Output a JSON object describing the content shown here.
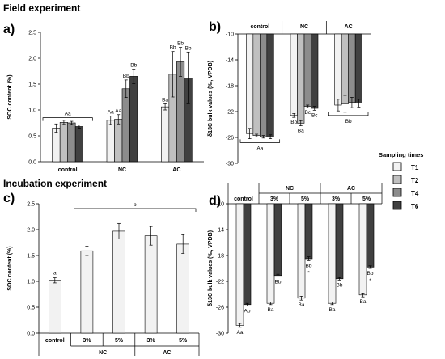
{
  "titles": {
    "field": "Field experiment",
    "incubation": "Incubation experiment"
  },
  "legend": {
    "title": "Sampling times",
    "items": [
      {
        "label": "T1",
        "color": "#f2f2f2"
      },
      {
        "label": "T2",
        "color": "#c0c0c0"
      },
      {
        "label": "T4",
        "color": "#8c8c8c"
      },
      {
        "label": "T6",
        "color": "#404040"
      }
    ]
  },
  "chart_data": [
    {
      "panel": "a)",
      "type": "bar",
      "ylabel": "SOC content (%)",
      "ylim": [
        0,
        2.5
      ],
      "yticks": [
        "0.0",
        "0.5",
        "1.0",
        "1.5",
        "2.0",
        "2.5"
      ],
      "categories": [
        "control",
        "NC",
        "AC"
      ],
      "series": [
        {
          "name": "T1",
          "values": [
            0.65,
            0.8,
            1.06
          ],
          "errors": [
            0.08,
            0.08,
            0.06
          ]
        },
        {
          "name": "T2",
          "values": [
            0.76,
            0.82,
            1.69
          ],
          "errors": [
            0.04,
            0.09,
            0.44
          ]
        },
        {
          "name": "T4",
          "values": [
            0.75,
            1.41,
            1.93
          ],
          "errors": [
            0.03,
            0.17,
            0.28
          ]
        },
        {
          "name": "T6",
          "values": [
            0.68,
            1.65,
            1.62
          ],
          "errors": [
            0.03,
            0.14,
            0.5
          ]
        }
      ],
      "labels": [
        [
          "",
          "",
          "",
          ""
        ],
        [
          "Aa",
          "Aa",
          "Bb",
          "Bb"
        ],
        [
          "Ba",
          "Bb",
          "Bb",
          "Bb"
        ]
      ],
      "bracket_label": "Aa"
    },
    {
      "panel": "b)",
      "type": "bar",
      "ylabel": "δ13C bulk values (‰, VPDB)",
      "ylim": [
        -30,
        -10
      ],
      "yticks": [
        "-10",
        "-14",
        "-18",
        "-22",
        "-26",
        "-30"
      ],
      "categories": [
        "control",
        "NC",
        "AC"
      ],
      "series": [
        {
          "name": "T1",
          "values": [
            -25.4,
            -22.6,
            -21.0
          ],
          "errors": [
            0.8,
            0.3,
            0.9
          ]
        },
        {
          "name": "T2",
          "values": [
            -25.7,
            -23.8,
            -20.8
          ],
          "errors": [
            0.2,
            0.4,
            1.3
          ]
        },
        {
          "name": "T4",
          "values": [
            -25.9,
            -21.2,
            -20.6
          ],
          "errors": [
            0.2,
            0.2,
            0.8
          ]
        },
        {
          "name": "T6",
          "values": [
            -25.9,
            -21.5,
            -20.7
          ],
          "errors": [
            0.3,
            0.3,
            0.6
          ]
        }
      ],
      "labels": [
        [
          "",
          "",
          "",
          ""
        ],
        [
          "Bb",
          "Ba",
          "Bc",
          "Bc"
        ],
        [
          "",
          "",
          "",
          ""
        ]
      ],
      "bracket_labels": [
        "Aa",
        "Bb"
      ]
    },
    {
      "panel": "c)",
      "type": "bar",
      "ylabel": "SOC content (%)",
      "ylim": [
        0,
        2.5
      ],
      "yticks": [
        "0.0",
        "0.5",
        "1.0",
        "1.5",
        "2.0",
        "2.5"
      ],
      "categories": [
        "control",
        "3%",
        "5%",
        "3%",
        "5%"
      ],
      "groups": [
        "NC",
        "AC"
      ],
      "values": [
        1.02,
        1.59,
        1.97,
        1.88,
        1.72
      ],
      "errors": [
        0.05,
        0.09,
        0.15,
        0.18,
        0.18
      ],
      "labels": [
        "a"
      ],
      "bracket_label": "b"
    },
    {
      "panel": "d)",
      "type": "bar",
      "ylabel": "δ13C bulk values (‰, VPDB)",
      "ylim": [
        -30,
        -10
      ],
      "yticks": [
        "-10",
        "-14",
        "-18",
        "-22",
        "-26",
        "-30"
      ],
      "categories": [
        "control",
        "3%",
        "5%",
        "3%",
        "5%"
      ],
      "groups": [
        "NC",
        "AC"
      ],
      "series": [
        {
          "name": "T1",
          "values": [
            -28.8,
            -25.4,
            -24.6,
            -25.4,
            -24.1
          ],
          "errors": [
            0.3,
            0.2,
            0.3,
            0.2,
            0.3
          ]
        },
        {
          "name": "T6",
          "values": [
            -25.6,
            -21.1,
            -18.5,
            -21.6,
            -19.8
          ],
          "errors": [
            0.2,
            0.2,
            0.3,
            0.2,
            0.2
          ]
        }
      ],
      "labels": [
        [
          "Aa",
          "Ab"
        ],
        [
          "Ba",
          "Bb"
        ],
        [
          "Ba",
          "Bb"
        ],
        [
          "Ba",
          "Bb"
        ],
        [
          "Ba",
          "Bb"
        ]
      ],
      "stars": [
        "",
        "",
        "*",
        "",
        "*"
      ]
    }
  ]
}
